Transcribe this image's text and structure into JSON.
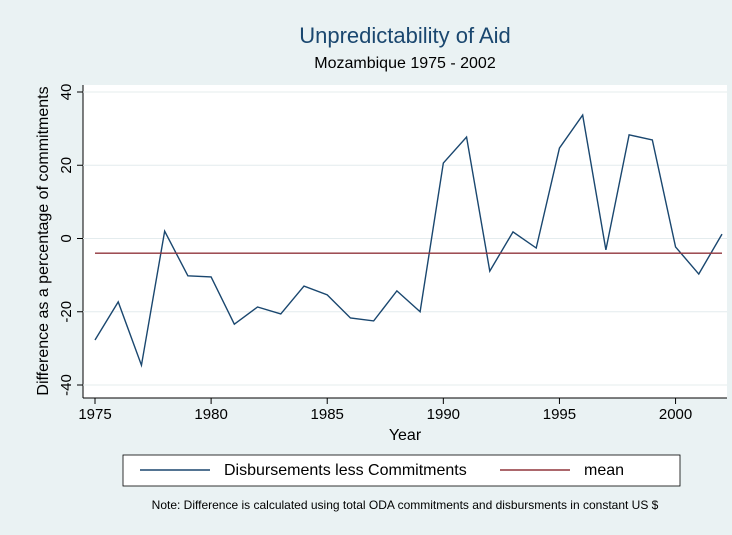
{
  "chart_data": {
    "type": "line",
    "title": "Unpredictability of Aid",
    "subtitle": "Mozambique 1975 - 2002",
    "x_label": "Year",
    "y_label": "Difference as a percentage of commitments",
    "note": "Note: Difference is calculated using total ODA commitments and disbursments in constant US $",
    "x": [
      1975,
      1976,
      1977,
      1978,
      1979,
      1980,
      1981,
      1982,
      1983,
      1984,
      1985,
      1986,
      1987,
      1988,
      1989,
      1990,
      1991,
      1992,
      1993,
      1994,
      1995,
      1996,
      1997,
      1998,
      1999,
      2000,
      2001,
      2002
    ],
    "series": [
      {
        "name": "Disbursements less Commitments",
        "color": "#1a476f",
        "values": [
          -27.7,
          -17.3,
          -34.6,
          2,
          -10.2,
          -10.5,
          -23.4,
          -18.7,
          -20.6,
          -13,
          -15.4,
          -21.7,
          -22.5,
          -14.3,
          -20,
          20.6,
          27.7,
          -8.9,
          1.8,
          -2.6,
          24.7,
          33.7,
          -3.1,
          28.3,
          26.9,
          -2.3,
          -9.7,
          1.2
        ]
      },
      {
        "name": "mean",
        "color": "#90353b",
        "values": [
          -4,
          -4,
          -4,
          -4,
          -4,
          -4,
          -4,
          -4,
          -4,
          -4,
          -4,
          -4,
          -4,
          -4,
          -4,
          -4,
          -4,
          -4,
          -4,
          -4,
          -4,
          -4,
          -4,
          -4,
          -4,
          -4,
          -4,
          -4
        ]
      }
    ],
    "xlim": [
      1975,
      2002
    ],
    "xticks": [
      1975,
      1980,
      1985,
      1990,
      1995,
      2000
    ],
    "ylim": [
      -40,
      40
    ],
    "yticks": [
      -40,
      -20,
      0,
      20,
      40
    ],
    "grid": true,
    "legend": "bottom"
  }
}
